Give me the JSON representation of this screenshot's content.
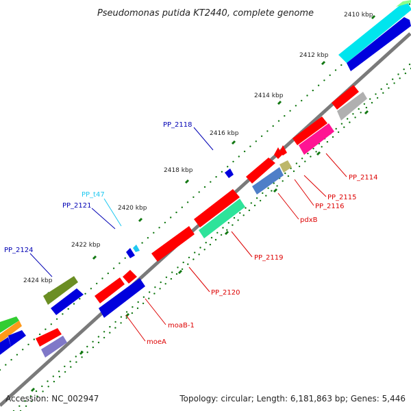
{
  "title": "Pseudomonas putida KT2440, complete genome",
  "footer": {
    "accession": "Accession: NC_002947",
    "topology": "Topology: circular; Length: 6,181,863 bp; Genes: 5,446"
  },
  "kbp_labels": [
    "2410 kbp",
    "2412 kbp",
    "2414 kbp",
    "2416 kbp",
    "2418 kbp",
    "2420 kbp",
    "2422 kbp",
    "2424 kbp"
  ],
  "gene_labels": {
    "pp2118": "PP_2118",
    "ppt47": "PP_t47",
    "pp2121": "PP_2121",
    "pp2124": "PP_2124",
    "pp2114": "PP_2114",
    "pp2115": "PP_2115",
    "pp2116": "PP_2116",
    "pdxb": "pdxB",
    "pp2119": "PP_2119",
    "pp2120": "PP_2120",
    "moab1": "moaB-1",
    "moea": "moeA"
  },
  "colors": {
    "red": "#ff0000",
    "blue": "#0000dd",
    "dark_blue": "#0a00b4",
    "cyan": "#00e5ee",
    "light_cyan": "#20c8f0",
    "olive": "#6b8e23",
    "green_mint": "#2ee39a",
    "pink": "#ff1493",
    "khaki": "#bdb76b",
    "steel": "#4f7fc8",
    "gray": "#b0b0b0",
    "lavender": "#8078c8",
    "orange": "#ff9a1a",
    "lime": "#32cd32",
    "backbone": "#7a7a7a",
    "tick_green": "#117711",
    "label_blue": "#0000b4",
    "label_cyan": "#1ec8f0",
    "label_red": "#dd0000"
  }
}
